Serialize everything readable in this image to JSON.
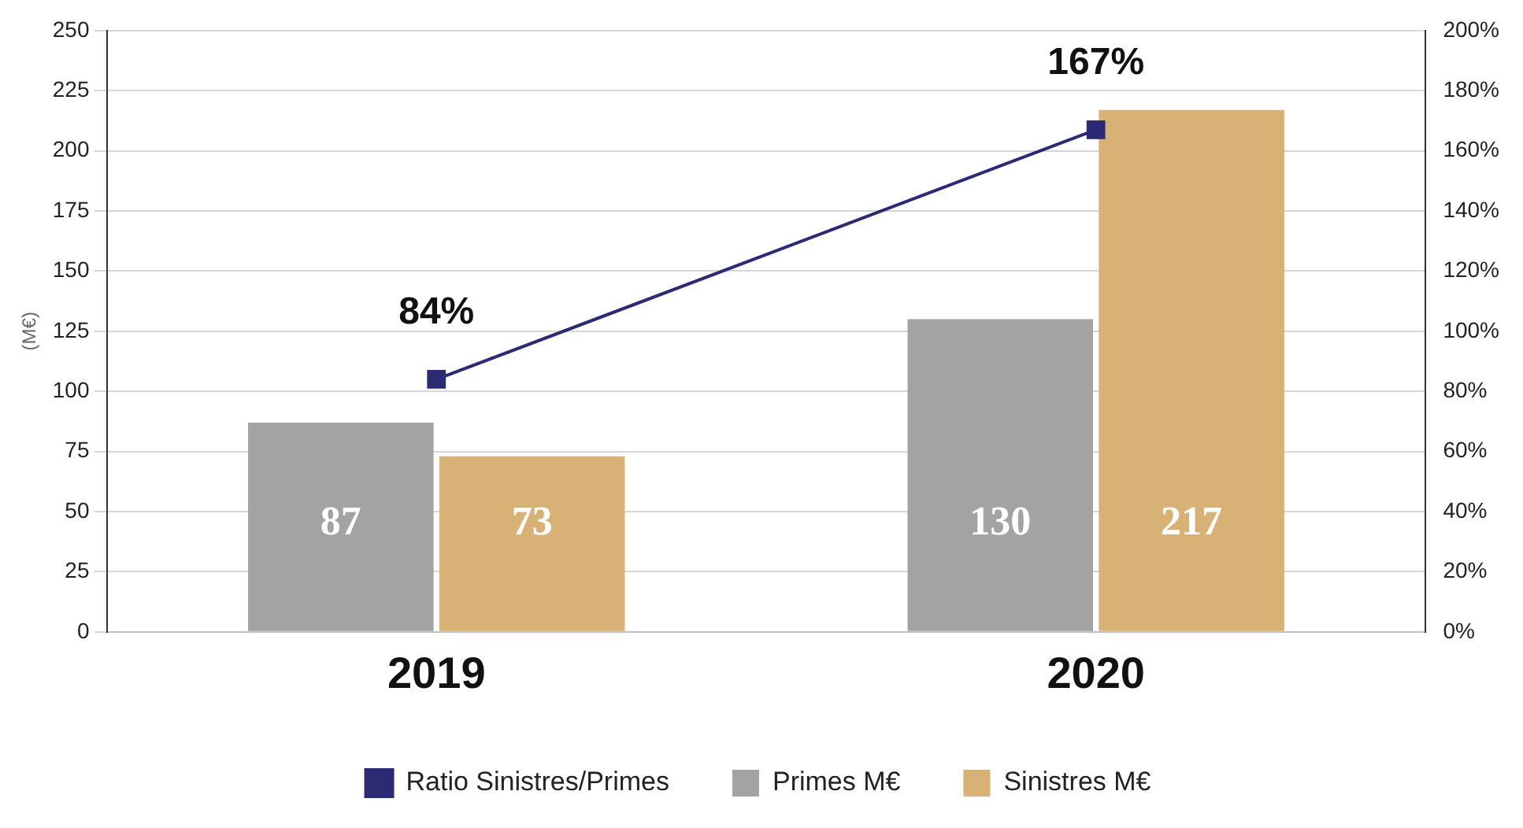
{
  "chart_data": {
    "type": "bar",
    "ylabel": "(M€)",
    "categories": [
      "2019",
      "2020"
    ],
    "series": [
      {
        "name": "Primes M€",
        "color": "#a3a3a3",
        "values": [
          87,
          130
        ],
        "value_labels": [
          "87",
          "130"
        ]
      },
      {
        "name": "Sinistres M€",
        "color": "#d8b176",
        "values": [
          73,
          217
        ],
        "value_labels": [
          "73",
          "217"
        ]
      },
      {
        "name": "Ratio Sinistres/Primes",
        "type": "line",
        "axis": "y2",
        "color": "#2b2a72",
        "values": [
          84,
          167
        ],
        "value_labels": [
          "84%",
          "167%"
        ],
        "marker": "square"
      }
    ],
    "ylim": [
      0,
      250
    ],
    "yticks": [
      0,
      25,
      50,
      75,
      100,
      125,
      150,
      175,
      200,
      225,
      250
    ],
    "y2lim": [
      0,
      200
    ],
    "y2ticks": [
      {
        "value": 0,
        "label": "0%"
      },
      {
        "value": 20,
        "label": "20%"
      },
      {
        "value": 40,
        "label": "40%"
      },
      {
        "value": 60,
        "label": "60%"
      },
      {
        "value": 80,
        "label": "80%"
      },
      {
        "value": 100,
        "label": "100%"
      },
      {
        "value": 120,
        "label": "120%"
      },
      {
        "value": 140,
        "label": "140%"
      },
      {
        "value": 160,
        "label": "160%"
      },
      {
        "value": 180,
        "label": "180%"
      },
      {
        "value": 200,
        "label": "200%"
      }
    ],
    "grid": "y",
    "legend": "bottom"
  }
}
